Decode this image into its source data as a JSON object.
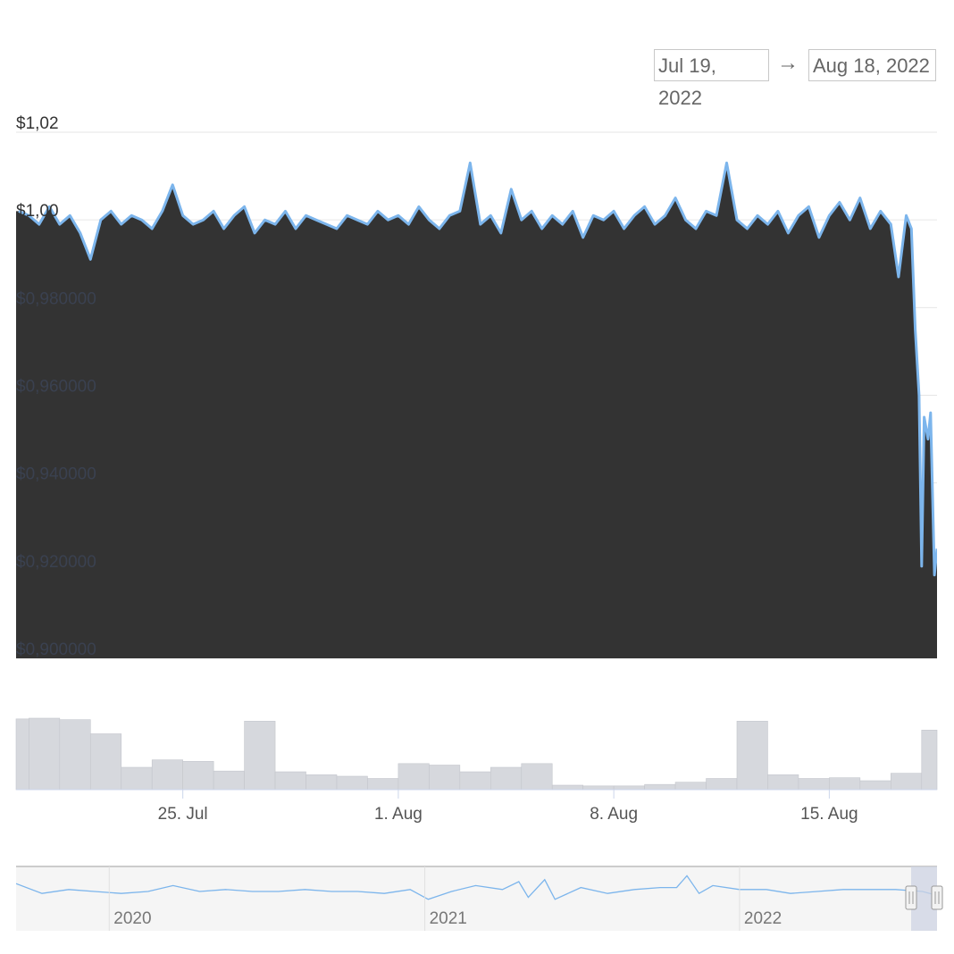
{
  "range_selector": {
    "from": "Jul 19, 2022",
    "arrow": "→",
    "to": "Aug 18, 2022"
  },
  "colors": {
    "line": "#7cb5ec",
    "area": "#333333",
    "volume": "#d6d8dd",
    "navigator_mask": "#cdd3e3"
  },
  "chart_data": {
    "type": "area",
    "title": "",
    "y_tick_labels": [
      "$1,02",
      "$1,00",
      "$0,980000",
      "$0,960000",
      "$0,940000",
      "$0,920000",
      "$0,900000"
    ],
    "y_ticks": [
      1.02,
      1.0,
      0.98,
      0.96,
      0.94,
      0.92,
      0.9
    ],
    "ylim": [
      0.9,
      1.02
    ],
    "x_tick_labels": [
      "25. Jul",
      "1. Aug",
      "8. Aug",
      "15. Aug"
    ],
    "x_ticks": [
      "2022-07-25",
      "2022-08-01",
      "2022-08-08",
      "2022-08-15"
    ],
    "xlim": [
      "2022-07-19 14:00",
      "2022-08-18 12:00"
    ],
    "grid": true,
    "price": [
      [
        "2022-07-19 16:00",
        1.002
      ],
      [
        "2022-07-20 00:00",
        1.001
      ],
      [
        "2022-07-20 08:00",
        0.999
      ],
      [
        "2022-07-20 16:00",
        1.003
      ],
      [
        "2022-07-21 00:00",
        0.999
      ],
      [
        "2022-07-21 08:00",
        1.001
      ],
      [
        "2022-07-21 16:00",
        0.997
      ],
      [
        "2022-07-22 00:00",
        0.991
      ],
      [
        "2022-07-22 08:00",
        1.0
      ],
      [
        "2022-07-22 16:00",
        1.002
      ],
      [
        "2022-07-23 00:00",
        0.999
      ],
      [
        "2022-07-23 08:00",
        1.001
      ],
      [
        "2022-07-23 16:00",
        1.0
      ],
      [
        "2022-07-24 00:00",
        0.998
      ],
      [
        "2022-07-24 08:00",
        1.002
      ],
      [
        "2022-07-24 16:00",
        1.008
      ],
      [
        "2022-07-25 00:00",
        1.001
      ],
      [
        "2022-07-25 08:00",
        0.999
      ],
      [
        "2022-07-25 16:00",
        1.0
      ],
      [
        "2022-07-26 00:00",
        1.002
      ],
      [
        "2022-07-26 08:00",
        0.998
      ],
      [
        "2022-07-26 16:00",
        1.001
      ],
      [
        "2022-07-27 00:00",
        1.003
      ],
      [
        "2022-07-27 08:00",
        0.997
      ],
      [
        "2022-07-27 16:00",
        1.0
      ],
      [
        "2022-07-28 00:00",
        0.999
      ],
      [
        "2022-07-28 08:00",
        1.002
      ],
      [
        "2022-07-28 16:00",
        0.998
      ],
      [
        "2022-07-29 00:00",
        1.001
      ],
      [
        "2022-07-29 08:00",
        1.0
      ],
      [
        "2022-07-29 16:00",
        0.999
      ],
      [
        "2022-07-30 00:00",
        0.998
      ],
      [
        "2022-07-30 08:00",
        1.001
      ],
      [
        "2022-07-30 16:00",
        1.0
      ],
      [
        "2022-07-31 00:00",
        0.999
      ],
      [
        "2022-07-31 08:00",
        1.002
      ],
      [
        "2022-07-31 16:00",
        1.0
      ],
      [
        "2022-08-01 00:00",
        1.001
      ],
      [
        "2022-08-01 08:00",
        0.999
      ],
      [
        "2022-08-01 16:00",
        1.003
      ],
      [
        "2022-08-02 00:00",
        1.0
      ],
      [
        "2022-08-02 08:00",
        0.998
      ],
      [
        "2022-08-02 16:00",
        1.001
      ],
      [
        "2022-08-03 00:00",
        1.002
      ],
      [
        "2022-08-03 08:00",
        1.013
      ],
      [
        "2022-08-03 16:00",
        0.999
      ],
      [
        "2022-08-04 00:00",
        1.001
      ],
      [
        "2022-08-04 08:00",
        0.997
      ],
      [
        "2022-08-04 16:00",
        1.007
      ],
      [
        "2022-08-05 00:00",
        1.0
      ],
      [
        "2022-08-05 08:00",
        1.002
      ],
      [
        "2022-08-05 16:00",
        0.998
      ],
      [
        "2022-08-06 00:00",
        1.001
      ],
      [
        "2022-08-06 08:00",
        0.999
      ],
      [
        "2022-08-06 16:00",
        1.002
      ],
      [
        "2022-08-07 00:00",
        0.996
      ],
      [
        "2022-08-07 08:00",
        1.001
      ],
      [
        "2022-08-07 16:00",
        1.0
      ],
      [
        "2022-08-08 00:00",
        1.002
      ],
      [
        "2022-08-08 08:00",
        0.998
      ],
      [
        "2022-08-08 16:00",
        1.001
      ],
      [
        "2022-08-09 00:00",
        1.003
      ],
      [
        "2022-08-09 08:00",
        0.999
      ],
      [
        "2022-08-09 16:00",
        1.001
      ],
      [
        "2022-08-10 00:00",
        1.005
      ],
      [
        "2022-08-10 08:00",
        1.0
      ],
      [
        "2022-08-10 16:00",
        0.998
      ],
      [
        "2022-08-11 00:00",
        1.002
      ],
      [
        "2022-08-11 08:00",
        1.001
      ],
      [
        "2022-08-11 16:00",
        1.013
      ],
      [
        "2022-08-12 00:00",
        1.0
      ],
      [
        "2022-08-12 08:00",
        0.998
      ],
      [
        "2022-08-12 16:00",
        1.001
      ],
      [
        "2022-08-13 00:00",
        0.999
      ],
      [
        "2022-08-13 08:00",
        1.002
      ],
      [
        "2022-08-13 16:00",
        0.997
      ],
      [
        "2022-08-14 00:00",
        1.001
      ],
      [
        "2022-08-14 08:00",
        1.003
      ],
      [
        "2022-08-14 16:00",
        0.996
      ],
      [
        "2022-08-15 00:00",
        1.001
      ],
      [
        "2022-08-15 08:00",
        1.004
      ],
      [
        "2022-08-15 16:00",
        1.0
      ],
      [
        "2022-08-16 00:00",
        1.005
      ],
      [
        "2022-08-16 08:00",
        0.998
      ],
      [
        "2022-08-16 16:00",
        1.002
      ],
      [
        "2022-08-17 00:00",
        0.999
      ],
      [
        "2022-08-17 06:00",
        0.987
      ],
      [
        "2022-08-17 12:00",
        1.001
      ],
      [
        "2022-08-17 16:00",
        0.998
      ],
      [
        "2022-08-17 19:00",
        0.975
      ],
      [
        "2022-08-17 22:00",
        0.96
      ],
      [
        "2022-08-18 00:00",
        0.921
      ],
      [
        "2022-08-18 02:00",
        0.955
      ],
      [
        "2022-08-18 05:00",
        0.95
      ],
      [
        "2022-08-18 07:00",
        0.956
      ],
      [
        "2022-08-18 10:00",
        0.919
      ],
      [
        "2022-08-18 12:00",
        0.925
      ]
    ],
    "volume": [
      [
        "2022-07-19",
        95
      ],
      [
        "2022-07-20",
        96
      ],
      [
        "2022-07-21",
        94
      ],
      [
        "2022-07-22",
        75
      ],
      [
        "2022-07-23",
        30
      ],
      [
        "2022-07-24",
        40
      ],
      [
        "2022-07-25",
        38
      ],
      [
        "2022-07-26",
        25
      ],
      [
        "2022-07-27",
        92
      ],
      [
        "2022-07-28",
        24
      ],
      [
        "2022-07-29",
        20
      ],
      [
        "2022-07-30",
        18
      ],
      [
        "2022-07-31",
        15
      ],
      [
        "2022-08-01",
        35
      ],
      [
        "2022-08-02",
        33
      ],
      [
        "2022-08-03",
        24
      ],
      [
        "2022-08-04",
        30
      ],
      [
        "2022-08-05",
        35
      ],
      [
        "2022-08-06",
        6
      ],
      [
        "2022-08-07",
        5
      ],
      [
        "2022-08-08",
        5
      ],
      [
        "2022-08-09",
        7
      ],
      [
        "2022-08-10",
        10
      ],
      [
        "2022-08-11",
        15
      ],
      [
        "2022-08-12",
        92
      ],
      [
        "2022-08-13",
        20
      ],
      [
        "2022-08-14",
        15
      ],
      [
        "2022-08-15",
        16
      ],
      [
        "2022-08-16",
        12
      ],
      [
        "2022-08-17",
        22
      ],
      [
        "2022-08-18",
        80
      ]
    ],
    "navigator": {
      "x_tick_labels": [
        "2020",
        "2021",
        "2022"
      ],
      "x_ticks": [
        "2020-01-01",
        "2021-01-01",
        "2022-01-01"
      ],
      "xlim": [
        "2019-09-15",
        "2022-08-18"
      ],
      "selected": [
        "2022-07-19",
        "2022-08-18"
      ],
      "values": [
        [
          "2019-09-15",
          1.004
        ],
        [
          "2019-10-15",
          0.999
        ],
        [
          "2019-11-15",
          1.001
        ],
        [
          "2019-12-15",
          1.0
        ],
        [
          "2020-01-15",
          0.999
        ],
        [
          "2020-02-15",
          1.0
        ],
        [
          "2020-03-15",
          1.003
        ],
        [
          "2020-04-15",
          1.0
        ],
        [
          "2020-05-15",
          1.001
        ],
        [
          "2020-06-15",
          1.0
        ],
        [
          "2020-07-15",
          1.0
        ],
        [
          "2020-08-15",
          1.001
        ],
        [
          "2020-09-15",
          1.0
        ],
        [
          "2020-10-15",
          1.0
        ],
        [
          "2020-11-15",
          0.999
        ],
        [
          "2020-12-15",
          1.001
        ],
        [
          "2021-01-05",
          0.996
        ],
        [
          "2021-02-01",
          1.0
        ],
        [
          "2021-03-01",
          1.003
        ],
        [
          "2021-04-01",
          1.001
        ],
        [
          "2021-04-20",
          1.005
        ],
        [
          "2021-05-01",
          0.997
        ],
        [
          "2021-05-20",
          1.006
        ],
        [
          "2021-06-01",
          0.996
        ],
        [
          "2021-07-01",
          1.002
        ],
        [
          "2021-08-01",
          0.999
        ],
        [
          "2021-09-01",
          1.001
        ],
        [
          "2021-10-01",
          1.002
        ],
        [
          "2021-10-20",
          1.002
        ],
        [
          "2021-11-01",
          1.008
        ],
        [
          "2021-11-15",
          0.999
        ],
        [
          "2021-12-01",
          1.003
        ],
        [
          "2022-01-01",
          1.001
        ],
        [
          "2022-02-01",
          1.001
        ],
        [
          "2022-03-01",
          0.999
        ],
        [
          "2022-04-01",
          1.0
        ],
        [
          "2022-05-01",
          1.001
        ],
        [
          "2022-06-01",
          1.001
        ],
        [
          "2022-07-01",
          1.001
        ],
        [
          "2022-08-01",
          1.0
        ],
        [
          "2022-08-18",
          0.998
        ]
      ]
    }
  }
}
